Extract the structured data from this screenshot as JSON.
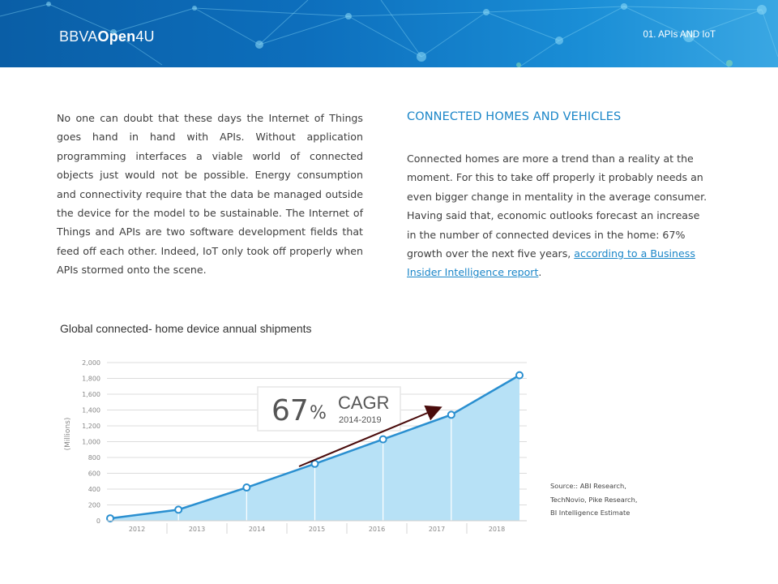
{
  "header": {
    "logo_part1": "BBVA",
    "logo_part2": "Open",
    "logo_part3": "4U",
    "section_tag": "01. APIs AND IoT"
  },
  "left_paragraph": "No one can doubt that these days the Internet of Things goes hand in hand with APIs. Without application programming interfaces a viable world of connected objects just would not be possible. Energy consumption and connectivity require that the data be managed outside the device for the model to be sustainable. The Internet of Things and APIs are two software development fields that feed off each other. Indeed, IoT only took off properly when APIs stormed onto the scene.",
  "right": {
    "heading": "CONNECTED HOMES AND VEHICLES",
    "paragraph1": "Connected homes are more a trend than a reality at the moment. For this to take off properly it probably needs an even bigger change in mentality in the average consumer.",
    "paragraph2_text": "Having said that, economic outlooks forecast an increase in the number of connected devices in the home: 67% growth over the next five years,",
    "link1": "according to a Business",
    "link2": "Insider Intelligence report",
    "period": "."
  },
  "chart_title": "Global connected- home device annual shipments",
  "source_lines": [
    "Source:: ABI Research,",
    "TechNovio, Pike Research,",
    "BI Intelligence Estimate"
  ],
  "colors": {
    "banner": "#0d6fbd",
    "accent": "#1b86c8",
    "area_fill": "#b7e1f6",
    "line": "#2a8fd0",
    "arrow": "#4a0c0c"
  },
  "chart_data": {
    "type": "area",
    "title": "Global connected- home device annual shipments",
    "ylabel": "(Millions)",
    "xlabel": "",
    "categories": [
      "2012",
      "2013",
      "2014",
      "2015",
      "2016",
      "2017",
      "2018"
    ],
    "values": [
      30,
      140,
      420,
      720,
      1030,
      1340,
      1840
    ],
    "ylim": [
      0,
      2000
    ],
    "yticks": [
      "0",
      "200",
      "400",
      "600",
      "800",
      "1,000",
      "1,200",
      "1,400",
      "1,600",
      "1,800",
      "2,000"
    ],
    "grid": true,
    "annotation": {
      "big_number": "67",
      "percent": "%",
      "label": "CAGR",
      "period": "2014-2019"
    }
  }
}
